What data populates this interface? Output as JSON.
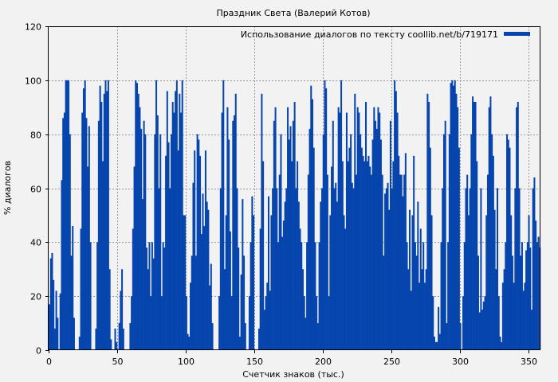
{
  "chart_data": {
    "type": "bar",
    "title": "Праздник Света (Валерий Котов)",
    "xlabel": "Счетчик знаков (тыс.)",
    "ylabel": "% диалогов",
    "xlim": [
      0,
      359
    ],
    "ylim": [
      0,
      120
    ],
    "xticks": [
      0,
      50,
      100,
      150,
      200,
      250,
      300,
      350
    ],
    "yticks": [
      0,
      20,
      40,
      60,
      80,
      100,
      120
    ],
    "grid": true,
    "legend_position": "top-right",
    "series": [
      {
        "name": "Использование диалогов по тексту coollib.net/b/719171",
        "color": "#0645ad",
        "values": [
          17,
          34,
          36,
          26,
          8,
          22,
          12,
          0,
          21,
          63,
          86,
          88,
          100,
          100,
          100,
          80,
          35,
          46,
          12,
          0,
          0,
          0,
          5,
          45,
          88,
          97,
          100,
          86,
          68,
          83,
          40,
          0,
          0,
          0,
          8,
          40,
          85,
          98,
          92,
          70,
          95,
          100,
          96,
          100,
          30,
          4,
          0,
          0,
          8,
          3,
          0,
          10,
          22,
          30,
          8,
          0,
          0,
          0,
          0,
          10,
          20,
          45,
          68,
          100,
          99,
          95,
          90,
          82,
          56,
          85,
          80,
          38,
          30,
          40,
          20,
          40,
          34,
          80,
          100,
          87,
          60,
          80,
          20,
          40,
          38,
          72,
          96,
          77,
          60,
          80,
          92,
          88,
          96,
          100,
          74,
          95,
          88,
          100,
          50,
          50,
          20,
          6,
          5,
          25,
          35,
          62,
          74,
          35,
          80,
          78,
          72,
          43,
          58,
          46,
          74,
          55,
          52,
          24,
          32,
          10,
          0,
          0,
          0,
          0,
          20,
          60,
          88,
          100,
          30,
          50,
          90,
          78,
          44,
          20,
          85,
          87,
          95,
          60,
          38,
          5,
          28,
          56,
          35,
          10,
          0,
          0,
          20,
          40,
          57,
          50,
          0,
          0,
          0,
          8,
          45,
          95,
          70,
          15,
          20,
          25,
          57,
          22,
          50,
          60,
          85,
          90,
          60,
          40,
          65,
          80,
          42,
          48,
          55,
          60,
          90,
          78,
          83,
          70,
          85,
          92,
          60,
          70,
          55,
          45,
          40,
          30,
          20,
          12,
          40,
          65,
          82,
          98,
          93,
          75,
          40,
          20,
          10,
          40,
          55,
          60,
          80,
          100,
          97,
          65,
          20,
          50,
          68,
          85,
          60,
          62,
          55,
          90,
          88,
          100,
          70,
          50,
          45,
          88,
          70,
          75,
          80,
          62,
          60,
          95,
          65,
          90,
          88,
          80,
          75,
          72,
          70,
          92,
          70,
          72,
          68,
          65,
          78,
          90,
          85,
          82,
          90,
          88,
          78,
          65,
          35,
          58,
          60,
          62,
          52,
          85,
          60,
          70,
          100,
          96,
          88,
          72,
          65,
          65,
          57,
          65,
          73,
          40,
          30,
          52,
          22,
          50,
          72,
          40,
          35,
          55,
          25,
          45,
          30,
          40,
          25,
          30,
          95,
          92,
          75,
          50,
          20,
          5,
          3,
          3,
          16,
          6,
          40,
          60,
          80,
          85,
          10,
          40,
          80,
          99,
          100,
          98,
          100,
          95,
          90,
          75,
          10,
          0,
          20,
          40,
          60,
          65,
          50,
          60,
          80,
          94,
          92,
          92,
          70,
          35,
          14,
          60,
          15,
          18,
          20,
          50,
          65,
          90,
          94,
          80,
          72,
          52,
          30,
          60,
          20,
          5,
          3,
          25,
          30,
          40,
          80,
          78,
          75,
          50,
          35,
          25,
          60,
          90,
          92,
          60,
          35,
          40,
          22,
          25,
          37,
          40,
          50,
          38,
          15,
          60,
          64,
          48,
          40,
          42,
          38
        ]
      }
    ]
  }
}
